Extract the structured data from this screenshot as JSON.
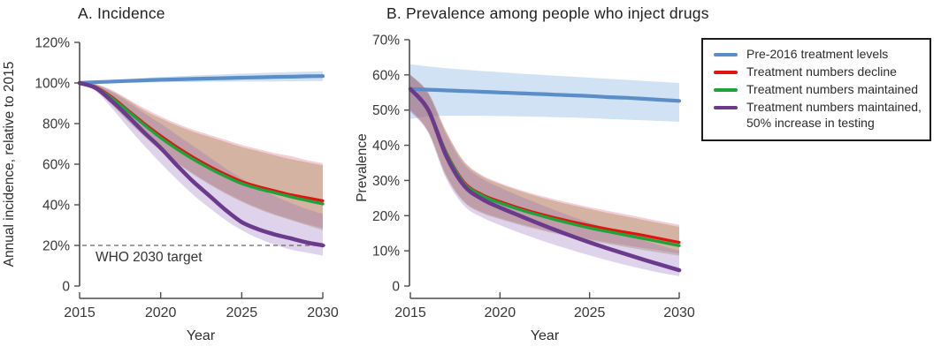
{
  "legend": {
    "items": [
      {
        "label": "Pre-2016 treatment levels",
        "color": "#5b8dc8"
      },
      {
        "label": "Treatment numbers decline",
        "color": "#e1140d"
      },
      {
        "label": "Treatment numbers maintained",
        "color": "#20a23a"
      },
      {
        "label": "Treatment numbers maintained, 50% increase in testing",
        "color": "#6b3a8d"
      }
    ]
  },
  "chart_data": [
    {
      "type": "line",
      "panel_id": "A",
      "title": "A. Incidence",
      "xlabel": "Year",
      "ylabel": "Annual incidence, relative to 2015",
      "ylim": [
        0,
        120
      ],
      "y_ticks": [
        0,
        20,
        40,
        60,
        80,
        100,
        120
      ],
      "y_tick_labels": [
        "0",
        "20%",
        "40%",
        "60%",
        "80%",
        "100%",
        "120%"
      ],
      "x_ticks": [
        2015,
        2020,
        2025,
        2030
      ],
      "x": [
        2015,
        2016,
        2017,
        2018,
        2019,
        2020,
        2021,
        2022,
        2023,
        2024,
        2025,
        2026,
        2027,
        2028,
        2029,
        2030
      ],
      "annotation": {
        "label": "WHO 2030 target",
        "value": 20
      },
      "series": [
        {
          "name": "Pre-2016 treatment levels",
          "color": "#5b8dc8",
          "band_color": "rgba(110,165,220,0.32)",
          "line_width": 4.2,
          "values": [
            100,
            100.4,
            100.7,
            101,
            101.3,
            101.6,
            101.8,
            102,
            102.2,
            102.4,
            102.6,
            102.8,
            103,
            103.1,
            103.3,
            103.4
          ],
          "band_upper": [
            100,
            100.9,
            101.5,
            102,
            102.5,
            102.9,
            103.3,
            103.7,
            104,
            104.3,
            104.6,
            104.9,
            105.1,
            105.4,
            105.6,
            105.8
          ],
          "band_lower": [
            100,
            100,
            100.1,
            100.2,
            100.3,
            100.4,
            100.5,
            100.5,
            100.6,
            100.6,
            100.7,
            100.7,
            100.8,
            100.8,
            100.9,
            100.9
          ]
        },
        {
          "name": "Treatment numbers decline",
          "color": "#e1140d",
          "band_color": "rgba(221,91,120,0.30)",
          "line_width": 3.2,
          "values": [
            100,
            98,
            93,
            86.5,
            80,
            74,
            68.5,
            63.5,
            59,
            55,
            51.5,
            49,
            47,
            45,
            43.5,
            42
          ],
          "band_upper": [
            100,
            99.5,
            96.5,
            92,
            87.5,
            83.5,
            80,
            77,
            74.5,
            72,
            69.5,
            67.5,
            65.5,
            64,
            62,
            60.5
          ],
          "band_lower": [
            100,
            96.5,
            89.5,
            81.5,
            74,
            67,
            61,
            55.5,
            50.5,
            46,
            42,
            38.5,
            35.5,
            33,
            30.5,
            28.5
          ]
        },
        {
          "name": "Treatment numbers maintained",
          "color": "#20a23a",
          "band_color": "rgba(125,111,32,0.28)",
          "line_width": 3.4,
          "values": [
            100,
            97.8,
            92.5,
            86,
            79.3,
            73,
            67.5,
            62.5,
            58,
            54,
            50.5,
            48,
            46,
            44,
            42.2,
            40.5
          ],
          "band_upper": [
            100,
            99.3,
            96,
            91.5,
            86.5,
            82.5,
            79,
            76,
            73.5,
            71,
            68.5,
            66.5,
            64.5,
            62.5,
            61,
            59.5
          ],
          "band_lower": [
            100,
            96.3,
            89,
            81,
            73.5,
            66.5,
            60.5,
            55,
            50,
            45.5,
            41.5,
            38,
            35,
            32.5,
            30,
            27.5
          ]
        },
        {
          "name": "Treatment numbers maintained, 50% increase in testing",
          "color": "#6b3a8d",
          "band_color": "rgba(145,108,185,0.30)",
          "line_width": 4.6,
          "values": [
            100,
            97.5,
            91,
            83.5,
            75.5,
            68,
            59.5,
            51.5,
            44.5,
            37.5,
            31.5,
            28,
            25.5,
            23.5,
            21.5,
            20
          ],
          "band_upper": [
            100,
            99,
            95.5,
            90.5,
            85,
            80,
            74.5,
            69,
            63.5,
            58,
            53,
            48.5,
            44.5,
            41,
            38,
            35.5
          ],
          "band_lower": [
            100,
            96,
            87.5,
            78,
            69,
            60.5,
            52.5,
            45,
            38.5,
            32.5,
            27.5,
            23.5,
            20.5,
            18,
            16.5,
            15
          ]
        }
      ]
    },
    {
      "type": "line",
      "panel_id": "B",
      "title": "B. Prevalence among people who inject drugs",
      "xlabel": "Year",
      "ylabel": "Prevalence",
      "ylim": [
        0,
        70
      ],
      "y_ticks": [
        0,
        10,
        20,
        30,
        40,
        50,
        60,
        70
      ],
      "y_tick_labels": [
        "0",
        "10%",
        "20%",
        "30%",
        "40%",
        "50%",
        "60%",
        "70%"
      ],
      "x_ticks": [
        2015,
        2020,
        2025,
        2030
      ],
      "x": [
        2015,
        2016,
        2017,
        2018,
        2019,
        2020,
        2021,
        2022,
        2023,
        2024,
        2025,
        2026,
        2027,
        2028,
        2029,
        2030
      ],
      "series": [
        {
          "name": "Pre-2016 treatment levels",
          "color": "#5b8dc8",
          "band_color": "rgba(110,165,220,0.32)",
          "line_width": 4.2,
          "values": [
            56,
            55.8,
            55.6,
            55.4,
            55.2,
            55,
            54.8,
            54.6,
            54.4,
            54.2,
            54,
            53.7,
            53.5,
            53.2,
            52.9,
            52.6
          ],
          "band_upper": [
            63,
            62.4,
            61.9,
            61.5,
            61.1,
            60.8,
            60.4,
            60.1,
            59.8,
            59.5,
            59.2,
            58.9,
            58.6,
            58.3,
            58,
            57.7
          ],
          "band_lower": [
            47.5,
            48.2,
            48.4,
            48.4,
            48.4,
            48.3,
            48.2,
            48.1,
            48,
            47.9,
            47.7,
            47.5,
            47.3,
            47.1,
            46.9,
            46.7
          ]
        },
        {
          "name": "Treatment numbers decline",
          "color": "#e1140d",
          "band_color": "rgba(221,91,120,0.30)",
          "line_width": 3.2,
          "values": [
            56,
            50,
            38,
            29.5,
            26,
            24,
            22.3,
            20.8,
            19.5,
            18.3,
            17.2,
            16.2,
            15.3,
            14.4,
            13.4,
            12.4
          ],
          "band_upper": [
            60,
            55,
            44,
            35.5,
            31.5,
            29.3,
            27.5,
            26,
            24.7,
            23.5,
            22.4,
            21.4,
            20.4,
            19.4,
            18.4,
            17.4
          ],
          "band_lower": [
            50,
            44,
            31.5,
            24,
            21,
            19.3,
            17.8,
            16.5,
            15.3,
            14.3,
            13.3,
            12.4,
            11.6,
            10.8,
            10,
            9.2
          ]
        },
        {
          "name": "Treatment numbers maintained",
          "color": "#20a23a",
          "band_color": "rgba(125,111,32,0.28)",
          "line_width": 3.4,
          "values": [
            56,
            50,
            37.8,
            29.2,
            25.7,
            23.6,
            21.9,
            20.4,
            19,
            17.7,
            16.5,
            15.5,
            14.5,
            13.5,
            12.5,
            11.5
          ],
          "band_upper": [
            60,
            54.8,
            43.7,
            35.2,
            31.2,
            29,
            27.2,
            25.6,
            24.2,
            23,
            21.9,
            20.8,
            19.8,
            18.8,
            17.8,
            16.8
          ],
          "band_lower": [
            50,
            43.8,
            31.2,
            23.8,
            20.7,
            19,
            17.5,
            16.2,
            15,
            13.9,
            12.9,
            12,
            11.1,
            10.2,
            9.4,
            8.6
          ]
        },
        {
          "name": "Treatment numbers maintained, 50% increase in testing",
          "color": "#6b3a8d",
          "band_color": "rgba(145,108,185,0.30)",
          "line_width": 4.6,
          "values": [
            56,
            50,
            37,
            28.5,
            24.7,
            22.3,
            20.2,
            18.1,
            16.1,
            14.2,
            12.4,
            10.7,
            9.1,
            7.5,
            6,
            4.5
          ],
          "band_upper": [
            60,
            54.5,
            43,
            34.5,
            30.5,
            28,
            25.8,
            23.7,
            21.7,
            19.8,
            18,
            16.3,
            14.6,
            13,
            11.5,
            10
          ],
          "band_lower": [
            49.5,
            43.5,
            30.5,
            22.8,
            19.5,
            17.3,
            15.3,
            13.5,
            11.8,
            10.2,
            8.7,
            7.3,
            6,
            4.8,
            3.7,
            2.8
          ]
        }
      ]
    }
  ]
}
